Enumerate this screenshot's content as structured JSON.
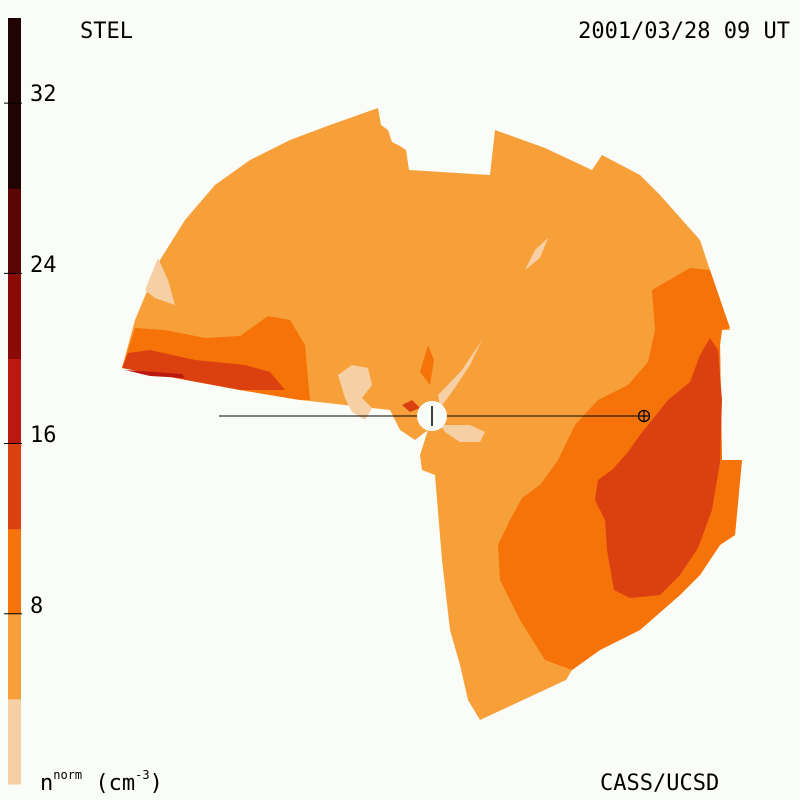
{
  "header": {
    "observatory": "STEL",
    "timestamp": "2001/03/28 09 UT"
  },
  "footer": {
    "quantity": "n",
    "quantity_sup": "norm",
    "unit_open": " (cm",
    "unit_sup": "-3",
    "unit_close": ")",
    "credit": "CASS/UCSD"
  },
  "colorbar": {
    "tick_labels": [
      "32",
      "24",
      "16",
      "8"
    ],
    "colors": [
      "#f6d0a4",
      "#f7a03a",
      "#f57308",
      "#db4010",
      "#bd1810",
      "#8a0a06",
      "#5a0604",
      "#200404"
    ]
  },
  "chart_data": {
    "type": "heatmap",
    "title": "STEL 2001/03/28 09 UT",
    "colorbar_label": "n norm (cm-3)",
    "colorbar_ticks": [
      8,
      16,
      24,
      32
    ],
    "colorbar_range": [
      0,
      36
    ],
    "legend": "left colorbar",
    "levels": [
      {
        "range": [
          0,
          4
        ],
        "color": "#f6d0a4"
      },
      {
        "range": [
          4,
          8
        ],
        "color": "#f7a03a"
      },
      {
        "range": [
          8,
          12
        ],
        "color": "#f57308"
      },
      {
        "range": [
          12,
          16
        ],
        "color": "#db4010"
      },
      {
        "range": [
          16,
          20
        ],
        "color": "#bd1810"
      },
      {
        "range": [
          20,
          24
        ],
        "color": "#8a0a06"
      },
      {
        "range": [
          24,
          28
        ],
        "color": "#5a0604"
      },
      {
        "range": [
          28,
          36
        ],
        "color": "#200404"
      }
    ],
    "markers": [
      "Sun (center)",
      "Earth (right, on reference line)"
    ]
  }
}
